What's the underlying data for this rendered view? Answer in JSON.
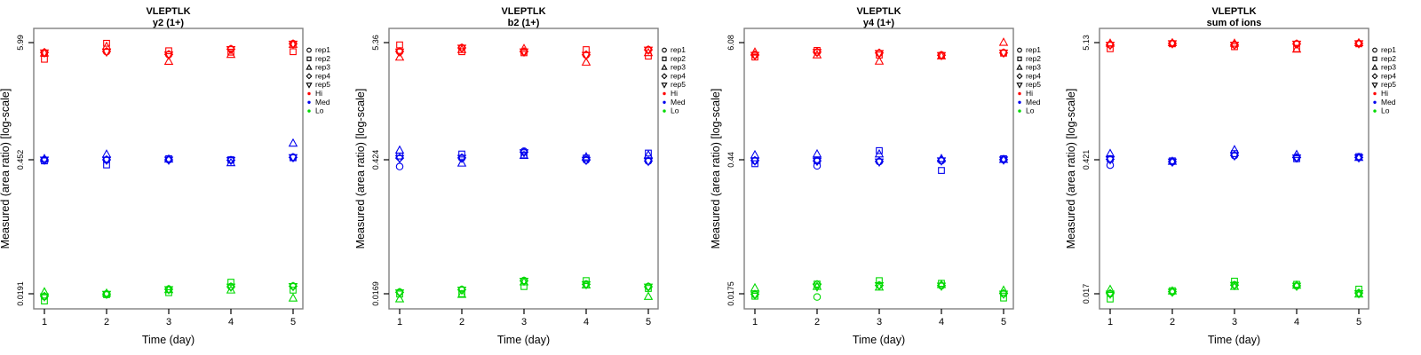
{
  "figure": {
    "ylabel": "Measured (area ratio) [log-scale]",
    "xlabel": "Time (day)",
    "colors": {
      "hi": "#ff0000",
      "med": "#0000ee",
      "lo": "#00d900",
      "frame": "#808080",
      "axis": "#000000",
      "text": "#000000",
      "background": "#ffffff"
    },
    "legend": {
      "reps": [
        {
          "label": "rep1",
          "symbol": "circle"
        },
        {
          "label": "rep2",
          "symbol": "square"
        },
        {
          "label": "rep3",
          "symbol": "triangle-up"
        },
        {
          "label": "rep4",
          "symbol": "diamond"
        },
        {
          "label": "rep5",
          "symbol": "triangle-down"
        }
      ],
      "levels": [
        {
          "label": "Hi",
          "color_key": "hi"
        },
        {
          "label": "Med",
          "color_key": "med"
        },
        {
          "label": "Lo",
          "color_key": "lo"
        }
      ]
    }
  },
  "chart_data": [
    {
      "type": "scatter",
      "title": "VLEPTLK",
      "subtitle": "y2 (1+)",
      "xlabel": "Time (day)",
      "ylabel": "Measured (area ratio) [log-scale]",
      "x": [
        1,
        2,
        3,
        4,
        5
      ],
      "xtick_labels": [
        "1",
        "2",
        "3",
        "4",
        "5"
      ],
      "ytick_labels": [
        "5.99",
        "0.452",
        "0.0191"
      ],
      "ytick_values": [
        5.99,
        0.452,
        0.0191
      ],
      "log_scale": true,
      "rep_order": [
        "rep1",
        "rep2",
        "rep3",
        "rep4",
        "rep5"
      ],
      "groups": [
        {
          "name": "Hi",
          "color_key": "hi",
          "values_by_day": [
            [
              4.8,
              4.15,
              4.75,
              4.82,
              4.78
            ],
            [
              4.9,
              5.9,
              5.5,
              4.92,
              4.88
            ],
            [
              4.6,
              5.0,
              3.95,
              4.62,
              4.58
            ],
            [
              5.2,
              4.85,
              4.6,
              5.18,
              5.15
            ],
            [
              5.85,
              4.9,
              5.75,
              5.83,
              5.8
            ]
          ]
        },
        {
          "name": "Med",
          "color_key": "med",
          "values_by_day": [
            [
              0.452,
              0.44,
              0.462,
              0.451,
              0.45
            ],
            [
              0.45,
              0.4,
              0.51,
              0.452,
              0.448
            ],
            [
              0.452,
              0.462,
              0.458,
              0.451,
              0.45
            ],
            [
              0.448,
              0.452,
              0.42,
              0.447,
              0.446
            ],
            [
              0.478,
              0.472,
              0.65,
              0.476,
              0.475
            ]
          ]
        },
        {
          "name": "Lo",
          "color_key": "lo",
          "values_by_day": [
            [
              0.0179,
              0.0161,
              0.0199,
              0.018,
              0.0178
            ],
            [
              0.019,
              0.0187,
              0.0193,
              0.019,
              0.0189
            ],
            [
              0.0213,
              0.0196,
              0.021,
              0.0212,
              0.0211
            ],
            [
              0.0226,
              0.0251,
              0.0208,
              0.0225,
              0.0224
            ],
            [
              0.0229,
              0.0208,
              0.0172,
              0.0228,
              0.0227
            ]
          ]
        }
      ]
    },
    {
      "type": "scatter",
      "title": "VLEPTLK",
      "subtitle": "b2 (1+)",
      "xlabel": "Time (day)",
      "ylabel": "Measured (area ratio) [log-scale]",
      "x": [
        1,
        2,
        3,
        4,
        5
      ],
      "xtick_labels": [
        "1",
        "2",
        "3",
        "4",
        "5"
      ],
      "ytick_labels": [
        "5.36",
        "0.424",
        "0.0169"
      ],
      "ytick_values": [
        5.36,
        0.424,
        0.0169
      ],
      "log_scale": true,
      "rep_order": [
        "rep1",
        "rep2",
        "rep3",
        "rep4",
        "rep5"
      ],
      "groups": [
        {
          "name": "Hi",
          "color_key": "hi",
          "values_by_day": [
            [
              4.4,
              5.1,
              3.9,
              4.42,
              4.38
            ],
            [
              4.8,
              4.4,
              4.6,
              4.78,
              4.76
            ],
            [
              4.4,
              4.3,
              4.7,
              4.41,
              4.39
            ],
            [
              4.1,
              4.6,
              3.5,
              4.12,
              4.08
            ],
            [
              4.6,
              4.0,
              4.3,
              4.58,
              4.56
            ]
          ]
        },
        {
          "name": "Med",
          "color_key": "med",
          "values_by_day": [
            [
              0.36,
              0.46,
              0.52,
              0.44,
              0.436
            ],
            [
              0.44,
              0.48,
              0.39,
              0.442,
              0.438
            ],
            [
              0.51,
              0.47,
              0.465,
              0.5,
              0.495
            ],
            [
              0.42,
              0.44,
              0.45,
              0.422,
              0.419
            ],
            [
              0.41,
              0.49,
              0.47,
              0.412,
              0.408
            ]
          ]
        },
        {
          "name": "Lo",
          "color_key": "lo",
          "values_by_day": [
            [
              0.0176,
              0.0168,
              0.0149,
              0.0175,
              0.0173
            ],
            [
              0.0187,
              0.0169,
              0.0166,
              0.0186,
              0.0185
            ],
            [
              0.0232,
              0.0201,
              0.0224,
              0.023,
              0.0229
            ],
            [
              0.0213,
              0.0232,
              0.0208,
              0.0212,
              0.0211
            ],
            [
              0.0201,
              0.0192,
              0.0158,
              0.02,
              0.0199
            ]
          ]
        }
      ]
    },
    {
      "type": "scatter",
      "title": "VLEPTLK",
      "subtitle": "y4 (1+)",
      "xlabel": "Time (day)",
      "ylabel": "Measured (area ratio) [log-scale]",
      "x": [
        1,
        2,
        3,
        4,
        5
      ],
      "xtick_labels": [
        "1",
        "2",
        "3",
        "4",
        "5"
      ],
      "ytick_labels": [
        "6.08",
        "0.44",
        "0.0175"
      ],
      "ytick_values": [
        6.08,
        0.44,
        0.0175
      ],
      "log_scale": true,
      "rep_order": [
        "rep1",
        "rep2",
        "rep3",
        "rep4",
        "rep5"
      ],
      "groups": [
        {
          "name": "Hi",
          "color_key": "hi",
          "values_by_day": [
            [
              4.6,
              4.4,
              4.9,
              4.62,
              4.58
            ],
            [
              4.9,
              5.1,
              4.6,
              4.92,
              4.88
            ],
            [
              4.8,
              4.6,
              4.0,
              4.82,
              4.78
            ],
            [
              4.6,
              4.55,
              4.5,
              4.58,
              4.56
            ],
            [
              4.85,
              4.8,
              6.1,
              4.83,
              4.82
            ]
          ]
        },
        {
          "name": "Med",
          "color_key": "med",
          "values_by_day": [
            [
              0.43,
              0.4,
              0.49,
              0.432,
              0.428
            ],
            [
              0.38,
              0.43,
              0.5,
              0.428,
              0.426
            ],
            [
              0.42,
              0.54,
              0.5,
              0.422,
              0.418
            ],
            [
              0.43,
              0.34,
              0.45,
              0.432,
              0.43
            ],
            [
              0.44,
              0.45,
              0.442,
              0.441,
              0.439
            ]
          ]
        },
        {
          "name": "Lo",
          "color_key": "lo",
          "values_by_day": [
            [
              0.0172,
              0.0165,
              0.0201,
              0.0173,
              0.0171
            ],
            [
              0.0162,
              0.0221,
              0.0208,
              0.0219,
              0.0207
            ],
            [
              0.0215,
              0.024,
              0.0205,
              0.0214,
              0.0213
            ],
            [
              0.0212,
              0.0225,
              0.0218,
              0.0213,
              0.0211
            ],
            [
              0.0175,
              0.0158,
              0.019,
              0.0176,
              0.0174
            ]
          ]
        }
      ]
    },
    {
      "type": "scatter",
      "title": "VLEPTLK",
      "subtitle": "sum of ions",
      "xlabel": "Time (day)",
      "ylabel": "Measured (area ratio) [log-scale]",
      "x": [
        1,
        2,
        3,
        4,
        5
      ],
      "xtick_labels": [
        "1",
        "2",
        "3",
        "4",
        "5"
      ],
      "ytick_labels": [
        "5.13",
        "0.421",
        "0.017"
      ],
      "ytick_values": [
        5.13,
        0.421,
        0.017
      ],
      "log_scale": true,
      "rep_order": [
        "rep1",
        "rep2",
        "rep3",
        "rep4",
        "rep5"
      ],
      "groups": [
        {
          "name": "Hi",
          "color_key": "hi",
          "values_by_day": [
            [
              4.9,
              4.5,
              5.05,
              4.88,
              4.86
            ],
            [
              5.05,
              5.0,
              5.1,
              5.04,
              5.02
            ],
            [
              4.9,
              4.7,
              5.05,
              4.89,
              4.87
            ],
            [
              5.0,
              4.5,
              4.45,
              4.99,
              4.97
            ],
            [
              5.05,
              5.0,
              5.1,
              5.04,
              5.02
            ]
          ]
        },
        {
          "name": "Med",
          "color_key": "med",
          "values_by_day": [
            [
              0.37,
              0.43,
              0.48,
              0.425,
              0.422
            ],
            [
              0.4,
              0.41,
              0.405,
              0.401,
              0.399
            ],
            [
              0.46,
              0.48,
              0.52,
              0.462,
              0.458
            ],
            [
              0.44,
              0.43,
              0.47,
              0.441,
              0.438
            ],
            [
              0.44,
              0.45,
              0.441,
              0.442,
              0.439
            ]
          ]
        },
        {
          "name": "Lo",
          "color_key": "lo",
          "values_by_day": [
            [
              0.017,
              0.015,
              0.0188,
              0.0171,
              0.0169
            ],
            [
              0.0178,
              0.0183,
              0.0181,
              0.0179,
              0.0177
            ],
            [
              0.021,
              0.023,
              0.0202,
              0.0209,
              0.0208
            ],
            [
              0.0205,
              0.0213,
              0.0208,
              0.0206,
              0.0204
            ],
            [
              0.0172,
              0.019,
              0.0168,
              0.0173,
              0.0171
            ]
          ]
        }
      ]
    }
  ]
}
